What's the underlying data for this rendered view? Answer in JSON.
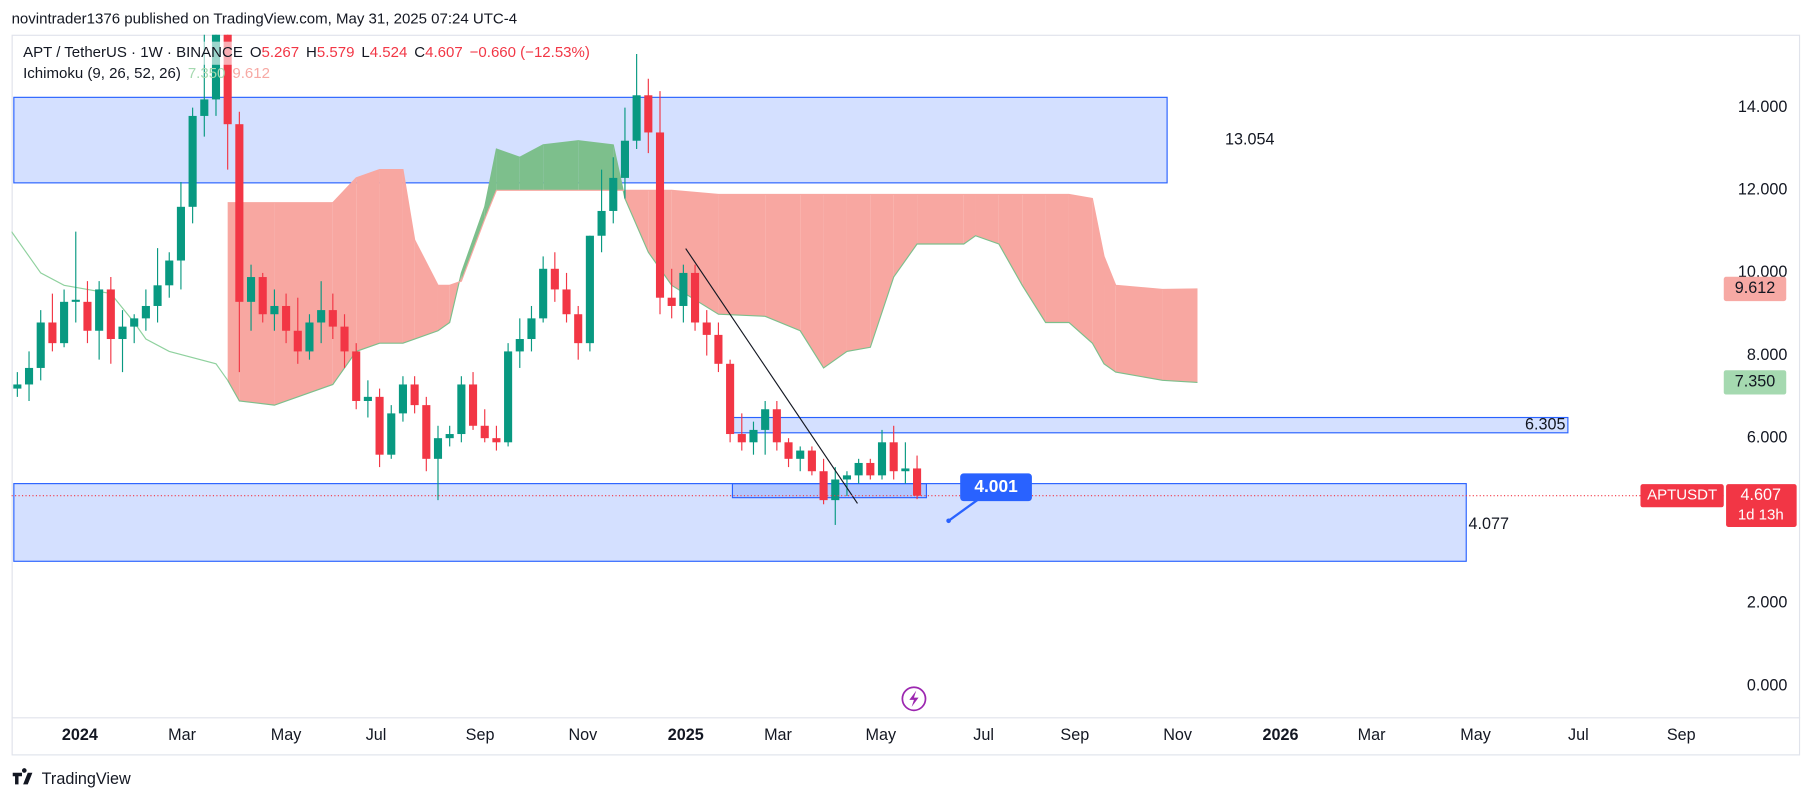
{
  "header": "novintrader1376 published on TradingView.com, May 31, 2025 07:24 UTC-4",
  "footer": "TradingView",
  "chart_data": {
    "type": "candlestick",
    "symbol": "APT / TetherUS · 1W · BINANCE",
    "ohlc_keys": [
      "O",
      "H",
      "L",
      "C"
    ],
    "change": "−0.660 (−12.53%)",
    "indicator": {
      "name": "Ichimoku (9, 26, 52, 26)",
      "values": [
        {
          "value": 7.35,
          "label": "7.350"
        },
        {
          "value": 9.612,
          "label": "9.612"
        }
      ]
    },
    "up_color": "#089981",
    "down_color": "#f23645",
    "xlim": [
      -1.485,
      146.04
    ],
    "ylim": [
      -0.756,
      15.766
    ],
    "yticks": [
      {
        "value": 0,
        "label": "0.000"
      },
      {
        "value": 2,
        "label": "2.000"
      },
      {
        "value": 4,
        "label": "4.000"
      },
      {
        "value": 6,
        "label": "6.000"
      },
      {
        "value": 8,
        "label": "8.000"
      },
      {
        "value": 10,
        "label": "10.000"
      },
      {
        "value": 12,
        "label": "12.000"
      },
      {
        "value": 14,
        "label": "14.000"
      }
    ],
    "xticks": [
      {
        "value": 5.35,
        "label": "2024"
      },
      {
        "value": 14.1,
        "label": "Mar"
      },
      {
        "value": 23.0,
        "label": "May"
      },
      {
        "value": 30.7,
        "label": "Jul"
      },
      {
        "value": 39.6,
        "label": "Sep"
      },
      {
        "value": 48.4,
        "label": "Nov"
      },
      {
        "value": 57.2,
        "label": "2025"
      },
      {
        "value": 65.1,
        "label": "Mar"
      },
      {
        "value": 73.9,
        "label": "May"
      },
      {
        "value": 82.7,
        "label": "Jul"
      },
      {
        "value": 90.5,
        "label": "Sep"
      },
      {
        "value": 99.3,
        "label": "Nov"
      },
      {
        "value": 108.1,
        "label": "2026"
      },
      {
        "value": 115.9,
        "label": "Mar"
      },
      {
        "value": 124.8,
        "label": "May"
      },
      {
        "value": 133.6,
        "label": "Jul"
      },
      {
        "value": 142.4,
        "label": "Sep"
      }
    ],
    "candles": [
      [
        7.2,
        7.6,
        7.0,
        7.3
      ],
      [
        7.3,
        8.1,
        6.9,
        7.7
      ],
      [
        7.7,
        9.1,
        7.4,
        8.8
      ],
      [
        8.8,
        9.5,
        8.1,
        8.3
      ],
      [
        8.3,
        9.6,
        8.2,
        9.3
      ],
      [
        9.3,
        11.0,
        8.8,
        9.35
      ],
      [
        9.3,
        9.8,
        8.3,
        8.6
      ],
      [
        8.6,
        9.8,
        7.9,
        9.6
      ],
      [
        9.6,
        9.9,
        7.8,
        8.4
      ],
      [
        8.4,
        9.1,
        7.6,
        8.7
      ],
      [
        8.7,
        9.0,
        8.3,
        8.9
      ],
      [
        8.9,
        9.6,
        8.6,
        9.2
      ],
      [
        9.2,
        10.6,
        8.8,
        9.7
      ],
      [
        9.7,
        10.5,
        9.4,
        10.3
      ],
      [
        10.3,
        12.2,
        9.6,
        11.6
      ],
      [
        11.6,
        14.0,
        11.2,
        13.8
      ],
      [
        13.8,
        16.5,
        13.3,
        14.2
      ],
      [
        14.2,
        17.0,
        13.8,
        16.4
      ],
      [
        16.4,
        17.0,
        12.5,
        13.6
      ],
      [
        13.6,
        13.9,
        7.6,
        9.3
      ],
      [
        9.3,
        10.2,
        8.6,
        9.9
      ],
      [
        9.9,
        10.0,
        8.8,
        9.0
      ],
      [
        9.0,
        9.6,
        8.6,
        9.2
      ],
      [
        9.2,
        9.5,
        8.3,
        8.6
      ],
      [
        8.6,
        9.4,
        7.8,
        8.1
      ],
      [
        8.1,
        9.0,
        7.9,
        8.8
      ],
      [
        8.8,
        9.8,
        8.3,
        9.1
      ],
      [
        9.1,
        9.5,
        8.4,
        8.7
      ],
      [
        8.7,
        9.0,
        7.7,
        8.1
      ],
      [
        8.1,
        8.3,
        6.7,
        6.9
      ],
      [
        6.9,
        7.4,
        6.5,
        7.0
      ],
      [
        7.0,
        7.2,
        5.3,
        5.6
      ],
      [
        5.6,
        6.8,
        5.5,
        6.6
      ],
      [
        6.6,
        7.5,
        6.4,
        7.3
      ],
      [
        7.3,
        7.5,
        6.6,
        6.8
      ],
      [
        6.8,
        7.0,
        5.2,
        5.5
      ],
      [
        5.5,
        6.3,
        4.5,
        6.0
      ],
      [
        6.0,
        6.3,
        5.8,
        6.1
      ],
      [
        6.1,
        7.5,
        5.9,
        7.3
      ],
      [
        7.3,
        7.6,
        6.2,
        6.3
      ],
      [
        6.3,
        6.7,
        5.9,
        6.0
      ],
      [
        6.0,
        6.3,
        5.7,
        5.9
      ],
      [
        5.9,
        8.3,
        5.8,
        8.1
      ],
      [
        8.1,
        8.9,
        7.7,
        8.4
      ],
      [
        8.4,
        9.2,
        8.1,
        8.9
      ],
      [
        8.9,
        10.4,
        8.8,
        10.1
      ],
      [
        10.1,
        10.5,
        9.3,
        9.6
      ],
      [
        9.6,
        10.0,
        8.8,
        9.0
      ],
      [
        9.0,
        9.2,
        7.9,
        8.3
      ],
      [
        8.3,
        10.9,
        8.1,
        10.9
      ],
      [
        10.9,
        12.5,
        10.5,
        11.5
      ],
      [
        11.5,
        12.8,
        11.2,
        12.3
      ],
      [
        12.3,
        14.0,
        11.8,
        13.2
      ],
      [
        13.2,
        15.3,
        13.0,
        14.3
      ],
      [
        14.3,
        14.7,
        12.9,
        13.4
      ],
      [
        13.4,
        14.4,
        9.0,
        9.4
      ],
      [
        9.4,
        10.1,
        8.9,
        9.2
      ],
      [
        9.2,
        10.2,
        8.8,
        10.0
      ],
      [
        10.0,
        10.2,
        8.6,
        8.8
      ],
      [
        8.8,
        9.1,
        8.0,
        8.5
      ],
      [
        8.5,
        8.8,
        7.6,
        7.8
      ],
      [
        7.8,
        7.9,
        5.9,
        6.1
      ],
      [
        6.1,
        6.6,
        5.7,
        5.9
      ],
      [
        5.9,
        6.4,
        5.6,
        6.2
      ],
      [
        6.2,
        6.9,
        5.6,
        6.7
      ],
      [
        6.7,
        6.9,
        5.7,
        5.9
      ],
      [
        5.9,
        6.0,
        5.3,
        5.5
      ],
      [
        5.5,
        5.8,
        5.2,
        5.7
      ],
      [
        5.7,
        5.8,
        5.1,
        5.2
      ],
      [
        5.2,
        5.5,
        4.4,
        4.5
      ],
      [
        4.5,
        5.3,
        3.9,
        5.0
      ],
      [
        5.0,
        5.2,
        4.6,
        5.1
      ],
      [
        5.1,
        5.5,
        4.9,
        5.4
      ],
      [
        5.4,
        5.5,
        5.0,
        5.1
      ],
      [
        5.1,
        6.2,
        5.0,
        5.9
      ],
      [
        5.9,
        6.3,
        5.0,
        5.2
      ],
      [
        5.2,
        5.9,
        4.9,
        5.267
      ],
      [
        5.267,
        5.579,
        4.524,
        4.607
      ]
    ],
    "cloud": {
      "weeks": [
        18,
        19,
        22,
        27,
        29,
        31,
        33,
        34,
        36,
        37,
        38,
        40,
        41,
        43,
        45,
        48,
        51,
        52,
        54,
        56,
        60,
        64,
        67,
        69,
        71,
        73,
        75,
        77,
        81,
        82,
        84,
        86,
        88,
        90,
        92,
        93,
        94,
        98,
        101
      ],
      "span_a": [
        7.4,
        6.9,
        6.8,
        7.3,
        8.1,
        8.3,
        8.3,
        8.4,
        8.6,
        8.8,
        10.0,
        11.6,
        13.0,
        12.8,
        13.1,
        13.2,
        13.1,
        11.8,
        10.5,
        9.7,
        9.0,
        8.95,
        8.6,
        7.7,
        8.1,
        8.2,
        9.9,
        10.7,
        10.7,
        10.9,
        10.7,
        9.7,
        8.8,
        8.8,
        8.3,
        7.8,
        7.6,
        7.4,
        7.35
      ],
      "span_b": [
        11.7,
        11.7,
        11.7,
        11.7,
        12.3,
        12.5,
        12.5,
        10.8,
        9.7,
        9.7,
        9.8,
        11.3,
        12.0,
        12.0,
        12.0,
        12.0,
        12.0,
        12.0,
        12.0,
        12.0,
        11.9,
        11.9,
        11.9,
        11.9,
        11.9,
        11.9,
        11.9,
        11.9,
        11.9,
        11.9,
        11.9,
        11.9,
        11.9,
        11.9,
        11.8,
        10.4,
        9.7,
        9.6,
        9.612
      ],
      "bull_color": "#7dbf8c",
      "bear_color": "#f8a7a1"
    },
    "lagging_line": {
      "weeks": [
        -0.5,
        2,
        4,
        8,
        10,
        11,
        13,
        17,
        18
      ],
      "values": [
        11.0,
        10.0,
        9.7,
        9.5,
        8.8,
        8.4,
        8.1,
        7.8,
        7.4
      ],
      "color": "#8fd19e"
    },
    "zones": [
      {
        "from": -0.3,
        "to": 98.4,
        "top": 14.25,
        "bottom": 12.18,
        "label": 13.054
      },
      {
        "from": 61.2,
        "to": 132.7,
        "top": 6.5,
        "bottom": 6.13,
        "label": 6.305
      },
      {
        "from": -0.3,
        "to": 124.0,
        "top": 4.9,
        "bottom": 3.02,
        "label": 4.077
      },
      {
        "from": 61.2,
        "to": 77.8,
        "top": 4.9,
        "bottom": 4.56
      }
    ],
    "zone_color": "#2962ff",
    "trend_line": {
      "weeks": [
        57.2,
        71.9
      ],
      "values": [
        10.59,
        4.42
      ]
    },
    "callout": {
      "week": 79.7,
      "value": 4.001
    },
    "price_tag": {
      "symbol": "APTUSDT",
      "countdown": "1d 13h"
    }
  }
}
